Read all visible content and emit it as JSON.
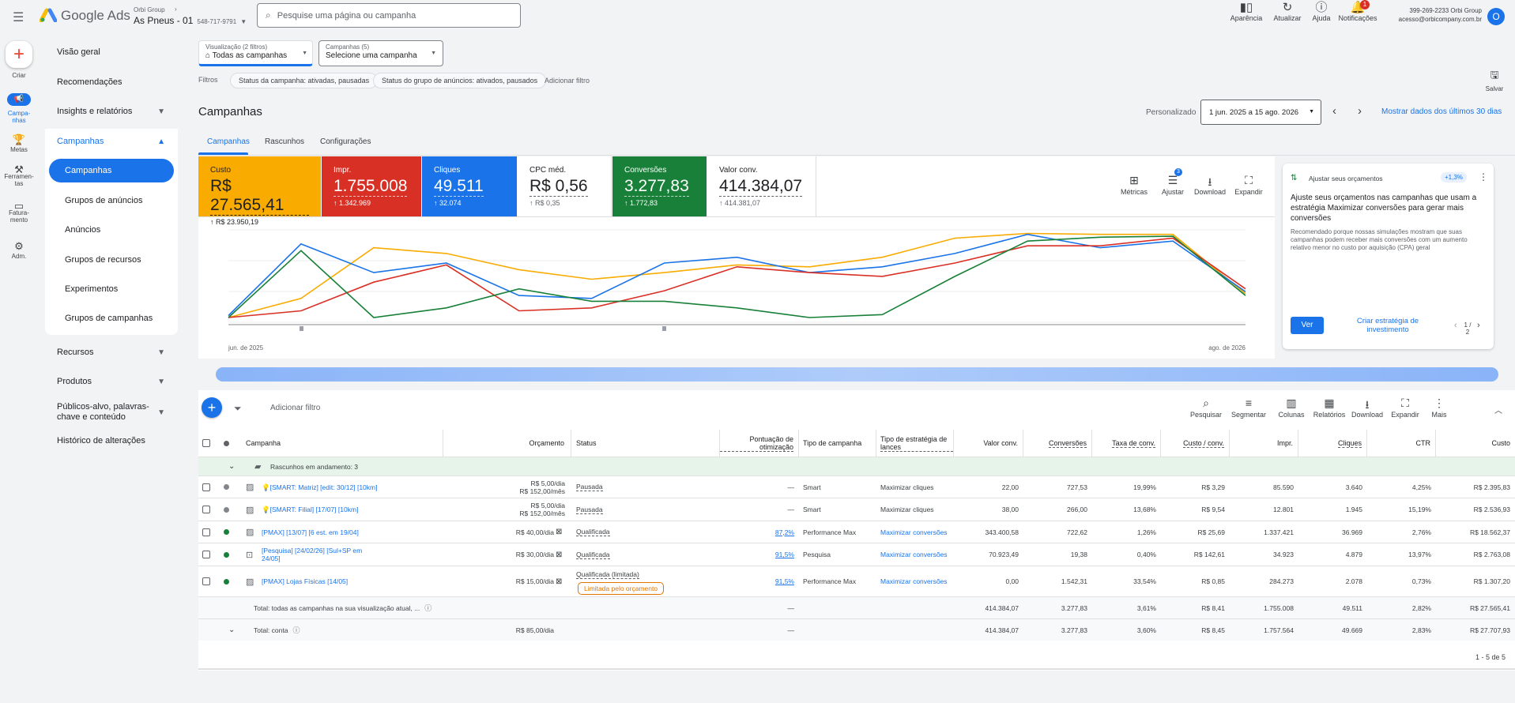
{
  "header": {
    "menu_icon": "menu-icon",
    "product": "Google Ads",
    "org": "Orbi Group",
    "account_name": "As Pneus - 01",
    "account_id": "548-717-9791",
    "search_placeholder": "Pesquise uma página ou campanha",
    "actions": [
      {
        "icon": "appearance-icon",
        "label": "Aparência"
      },
      {
        "icon": "refresh-icon",
        "label": "Atualizar"
      },
      {
        "icon": "help-icon",
        "label": "Ajuda"
      },
      {
        "icon": "bell-icon",
        "label": "Notificações",
        "badge": "1"
      }
    ],
    "user_line1": "399-269-2233 Orbi Group",
    "user_line2": "acesso@orbicompany.com.br",
    "avatar": "O"
  },
  "rail": [
    {
      "icon": "plus-icon",
      "label": "Criar"
    },
    {
      "icon": "megaphone-icon",
      "label": "Campa-\nnhas"
    },
    {
      "icon": "trophy-icon",
      "label": "Metas"
    },
    {
      "icon": "tools-icon",
      "label": "Ferramen-\ntas"
    },
    {
      "icon": "card-icon",
      "label": "Fatura-\nmento"
    },
    {
      "icon": "gear-icon",
      "label": "Adm."
    }
  ],
  "nav": {
    "overview": "Visão geral",
    "recommendations": "Recomendações",
    "insights": "Insights e relatórios",
    "campaigns": "Campanhas",
    "sub": [
      "Campanhas",
      "Grupos de anúncios",
      "Anúncios",
      "Grupos de recursos",
      "Experimentos",
      "Grupos de campanhas"
    ],
    "resources": "Recursos",
    "products": "Produtos",
    "audiences": "Públicos-alvo, palavras-chave e conteúdo",
    "history": "Histórico de alterações"
  },
  "filters": {
    "view_label": "Visualização (2 filtros)",
    "view_value": "Todas as campanhas",
    "camp_label": "Campanhas (5)",
    "camp_value": "Selecione uma campanha",
    "filters_label": "Filtros",
    "chip1": "Status da campanha: ativadas, pausadas",
    "chip2": "Status do grupo de anúncios: ativados, pausados",
    "add": "Adicionar filtro",
    "save": "Salvar"
  },
  "page": {
    "title": "Campanhas",
    "custom": "Personalizado",
    "date_range": "1 jun. 2025 a 15 ago. 2026",
    "show_last": "Mostrar dados dos últimos 30 dias",
    "tabs": [
      "Campanhas",
      "Rascunhos",
      "Configurações"
    ]
  },
  "tiles": [
    {
      "label": "Custo",
      "value": "R$ 27.565,41",
      "sub": "↑ R$ 23.950,19",
      "color": "#f9ab00",
      "text": "#202124"
    },
    {
      "label": "Impr.",
      "value": "1.755.008",
      "sub": "↑ 1.342.969",
      "color": "#d93025",
      "text": "#ffffff"
    },
    {
      "label": "Cliques",
      "value": "49.511",
      "sub": "↑ 32.074",
      "color": "#1a73e8",
      "text": "#ffffff"
    },
    {
      "label": "CPC méd.",
      "value": "R$ 0,56",
      "sub": "↑ R$ 0,35",
      "color": "#ffffff",
      "text": "#202124"
    },
    {
      "label": "Conversões",
      "value": "3.277,83",
      "sub": "↑ 1.772,83",
      "color": "#188038",
      "text": "#ffffff"
    },
    {
      "label": "Valor conv.",
      "value": "414.384,07",
      "sub": "↑ 414.381,07",
      "color": "#ffffff",
      "text": "#202124"
    }
  ],
  "chart_tools": [
    {
      "icon": "metrics-icon",
      "label": "Métricas"
    },
    {
      "icon": "adjust-icon",
      "label": "Ajustar",
      "badge": "3"
    },
    {
      "icon": "download-icon",
      "label": "Download"
    },
    {
      "icon": "expand-icon",
      "label": "Expandir"
    }
  ],
  "chart_data": {
    "type": "line",
    "x_start_label": "jun. de 2025",
    "x_end_label": "ago. de 2026",
    "series": [
      {
        "color": "#f9ab00",
        "values": [
          0.05,
          0.25,
          0.78,
          0.72,
          0.55,
          0.45,
          0.52,
          0.6,
          0.58,
          0.68,
          0.88,
          0.93,
          0.92,
          0.92,
          0.3
        ]
      },
      {
        "color": "#1a73e8",
        "values": [
          0.07,
          0.82,
          0.52,
          0.62,
          0.28,
          0.25,
          0.62,
          0.68,
          0.52,
          0.58,
          0.72,
          0.92,
          0.78,
          0.85,
          0.32
        ]
      },
      {
        "color": "#d93025",
        "values": [
          0.05,
          0.12,
          0.42,
          0.6,
          0.12,
          0.15,
          0.33,
          0.58,
          0.52,
          0.48,
          0.62,
          0.8,
          0.8,
          0.88,
          0.35
        ]
      },
      {
        "color": "#188038",
        "values": [
          0.05,
          0.75,
          0.05,
          0.15,
          0.35,
          0.22,
          0.22,
          0.15,
          0.05,
          0.08,
          0.48,
          0.85,
          0.89,
          0.9,
          0.28
        ]
      }
    ]
  },
  "reco": {
    "title": "Ajustar seus orçamentos",
    "badge": "+1,3%",
    "headline": "Ajuste seus orçamentos nas campanhas que usam a estratégia Maximizar conversões para gerar mais conversões",
    "body": "Recomendado porque nossas simulações mostram que suas campanhas podem receber mais conversões com um aumento relativo menor no custo por aquisição (CPA) geral",
    "primary": "Ver",
    "secondary": "Criar estratégia de investimento",
    "page": "1 / 2"
  },
  "table_toolbar": {
    "add_filter": "Adicionar filtro",
    "tools": [
      "Pesquisar",
      "Segmentar",
      "Colunas",
      "Relatórios",
      "Download",
      "Expandir",
      "Mais"
    ]
  },
  "columns": [
    "Campanha",
    "Orçamento",
    "Status",
    "Pontuação de otimização",
    "Tipo de campanha",
    "Tipo de estratégia de lances",
    "Valor conv.",
    "Conversões",
    "Taxa de conv.",
    "Custo / conv.",
    "Impr.",
    "Cliques",
    "CTR",
    "Custo"
  ],
  "drafts_row": "Rascunhos em andamento: 3",
  "rows": [
    {
      "name": "💡[SMART: Matriz] [edit: 30/12] [10km]",
      "budget1": "R$ 5,00/dia",
      "budget2": "R$ 152,00/mês",
      "status": "Pausada",
      "status2": "",
      "opt": "—",
      "type": "Smart",
      "strategy": "Maximizar cliques",
      "conv_value": "22,00",
      "conversions": "727,53",
      "conv_rate": "19,99%",
      "cost_conv": "R$ 3,29",
      "impr": "85.590",
      "clicks": "3.640",
      "ctr": "4,25%",
      "cost": "R$ 2.395,83",
      "dot": "#80868b",
      "strategy_link": false
    },
    {
      "name": "💡[SMART: Filial] [17/07] [10km]",
      "budget1": "R$ 5,00/dia",
      "budget2": "R$ 152,00/mês",
      "status": "Pausada",
      "status2": "",
      "opt": "—",
      "type": "Smart",
      "strategy": "Maximizar cliques",
      "conv_value": "38,00",
      "conversions": "266,00",
      "conv_rate": "13,68%",
      "cost_conv": "R$ 9,54",
      "impr": "12.801",
      "clicks": "1.945",
      "ctr": "15,19%",
      "cost": "R$ 2.536,93",
      "dot": "#80868b",
      "strategy_link": false
    },
    {
      "name": "[PMAX] [13/07] [6 est. em 19/04]",
      "budget1": "R$ 40,00/dia",
      "budget2": "",
      "status": "Qualificada",
      "status2": "",
      "opt": "87,2%",
      "type": "Performance Max",
      "strategy": "Maximizar conversões",
      "conv_value": "343.400,58",
      "conversions": "722,62",
      "conv_rate": "1,26%",
      "cost_conv": "R$ 25,69",
      "impr": "1.337.421",
      "clicks": "36.969",
      "ctr": "2,76%",
      "cost": "R$ 18.562,37",
      "dot": "#188038",
      "strategy_link": true
    },
    {
      "name": "[Pesquisa] [24/02/26] [Sul+SP em 24/05]",
      "budget1": "R$ 30,00/dia",
      "budget2": "",
      "status": "Qualificada",
      "status2": "",
      "opt": "91,5%",
      "type": "Pesquisa",
      "strategy": "Maximizar conversões",
      "conv_value": "70.923,49",
      "conversions": "19,38",
      "conv_rate": "0,40%",
      "cost_conv": "R$ 142,61",
      "impr": "34.923",
      "clicks": "4.879",
      "ctr": "13,97%",
      "cost": "R$ 2.763,08",
      "dot": "#188038",
      "strategy_link": true
    },
    {
      "name": "[PMAX] Lojas Físicas [14/05]",
      "budget1": "R$ 15,00/dia",
      "budget2": "",
      "status": "Qualificada (limitada)",
      "status2": "Limitada pelo orçamento",
      "opt": "91,5%",
      "type": "Performance Max",
      "strategy": "Maximizar conversões",
      "conv_value": "0,00",
      "conversions": "1.542,31",
      "conv_rate": "33,54%",
      "cost_conv": "R$ 0,85",
      "impr": "284.273",
      "clicks": "2.078",
      "ctr": "0,73%",
      "cost": "R$ 1.307,20",
      "dot": "#188038",
      "strategy_link": true
    }
  ],
  "totals": [
    {
      "label": "Total: todas as campanhas na sua visualização atual, ...",
      "budget": "",
      "opt": "—",
      "conv_value": "414.384,07",
      "conversions": "3.277,83",
      "conv_rate": "3,61%",
      "cost_conv": "R$ 8,41",
      "impr": "1.755.008",
      "clicks": "49.511",
      "ctr": "2,82%",
      "cost": "R$ 27.565,41"
    },
    {
      "label": "Total: conta",
      "budget": "R$ 85,00/dia",
      "opt": "—",
      "conv_value": "414.384,07",
      "conversions": "3.277,83",
      "conv_rate": "3,60%",
      "cost_conv": "R$ 8,45",
      "impr": "1.757.564",
      "clicks": "49.669",
      "ctr": "2,83%",
      "cost": "R$ 27.707,93"
    }
  ],
  "pagination": "1 - 5 de 5"
}
